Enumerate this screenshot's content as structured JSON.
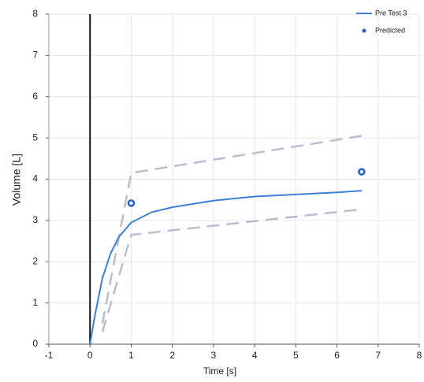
{
  "chart_data": {
    "type": "line",
    "xlabel": "Time [s]",
    "ylabel": "Volume [L]",
    "xlim": [
      -1,
      8
    ],
    "ylim": [
      0,
      8
    ],
    "xticks": [
      -1,
      0,
      1,
      2,
      3,
      4,
      5,
      6,
      7,
      8
    ],
    "yticks": [
      0,
      1,
      2,
      3,
      4,
      5,
      6,
      7,
      8
    ],
    "grid": true,
    "legend": "upper right",
    "series": [
      {
        "name": "Pre Test 3",
        "color": "#3b7fd6",
        "style": "line",
        "x": [
          0,
          0.1,
          0.2,
          0.3,
          0.5,
          0.7,
          1,
          1.5,
          2,
          3,
          4,
          5,
          6,
          6.6
        ],
        "values": [
          0,
          0.6,
          1.1,
          1.6,
          2.2,
          2.6,
          2.95,
          3.2,
          3.32,
          3.48,
          3.58,
          3.63,
          3.68,
          3.72
        ]
      },
      {
        "name": "Predicted",
        "color": "#1f5fd0",
        "style": "marker",
        "x": [
          1,
          6.6
        ],
        "values": [
          3.42,
          4.18
        ]
      }
    ],
    "limits": [
      {
        "color": "#b8bfd0",
        "x": [
          0.3,
          1,
          6.6
        ],
        "values": [
          0.5,
          4.15,
          5.05
        ]
      },
      {
        "color": "#b8bfd0",
        "x": [
          0.3,
          1,
          6.6
        ],
        "values": [
          0.3,
          2.65,
          3.27
        ]
      }
    ]
  }
}
